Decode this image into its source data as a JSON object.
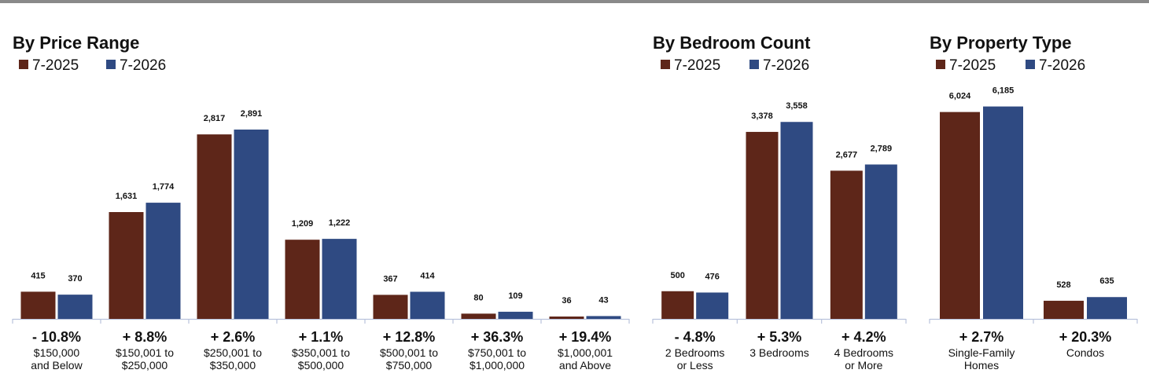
{
  "colors": {
    "series_2025": "#5e2619",
    "series_2026": "#2f4a82",
    "axis": "#b9c3dc"
  },
  "chart_data": [
    {
      "type": "bar",
      "title": "By Price Range",
      "legend": [
        "7-2025",
        "7-2026"
      ],
      "categories": [
        "$150,000 and Below",
        "$150,001 to $250,000",
        "$250,001 to $350,000",
        "$350,001 to $500,000",
        "$500,001 to $750,000",
        "$750,001 to $1,000,000",
        "$1,000,001 and Above"
      ],
      "series": [
        {
          "name": "7-2025",
          "values": [
            415,
            1631,
            2817,
            1209,
            367,
            80,
            36
          ],
          "labels": [
            "415",
            "1,631",
            "2,817",
            "1,209",
            "367",
            "80",
            "36"
          ]
        },
        {
          "name": "7-2026",
          "values": [
            370,
            1774,
            2891,
            1222,
            414,
            109,
            43
          ],
          "labels": [
            "370",
            "1,774",
            "2,891",
            "1,222",
            "414",
            "109",
            "43"
          ]
        }
      ],
      "changes": [
        "- 10.8%",
        "+ 8.8%",
        "+ 2.6%",
        "+ 1.1%",
        "+ 12.8%",
        "+ 36.3%",
        "+ 19.4%"
      ],
      "ylim": [
        0,
        3550
      ]
    },
    {
      "type": "bar",
      "title": "By Bedroom Count",
      "legend": [
        "7-2025",
        "7-2026"
      ],
      "categories": [
        "2 Bedrooms or Less",
        "3 Bedrooms",
        "4 Bedrooms or More"
      ],
      "series": [
        {
          "name": "7-2025",
          "values": [
            500,
            3378,
            2677
          ],
          "labels": [
            "500",
            "3,378",
            "2,677"
          ]
        },
        {
          "name": "7-2026",
          "values": [
            476,
            3558,
            2789
          ],
          "labels": [
            "476",
            "3,558",
            "2,789"
          ]
        }
      ],
      "changes": [
        "- 4.8%",
        "+ 5.3%",
        "+ 4.2%"
      ],
      "ylim": [
        0,
        4200
      ]
    },
    {
      "type": "bar",
      "title": "By Property Type",
      "legend": [
        "7-2025",
        "7-2026"
      ],
      "categories": [
        "Single-Family Homes",
        "Condos"
      ],
      "series": [
        {
          "name": "7-2025",
          "values": [
            6024,
            528
          ],
          "labels": [
            "6,024",
            "528"
          ]
        },
        {
          "name": "7-2026",
          "values": [
            6185,
            635
          ],
          "labels": [
            "6,185",
            "635"
          ]
        }
      ],
      "changes": [
        "+ 2.7%",
        "+ 20.3%"
      ],
      "ylim": [
        0,
        6770
      ]
    }
  ]
}
